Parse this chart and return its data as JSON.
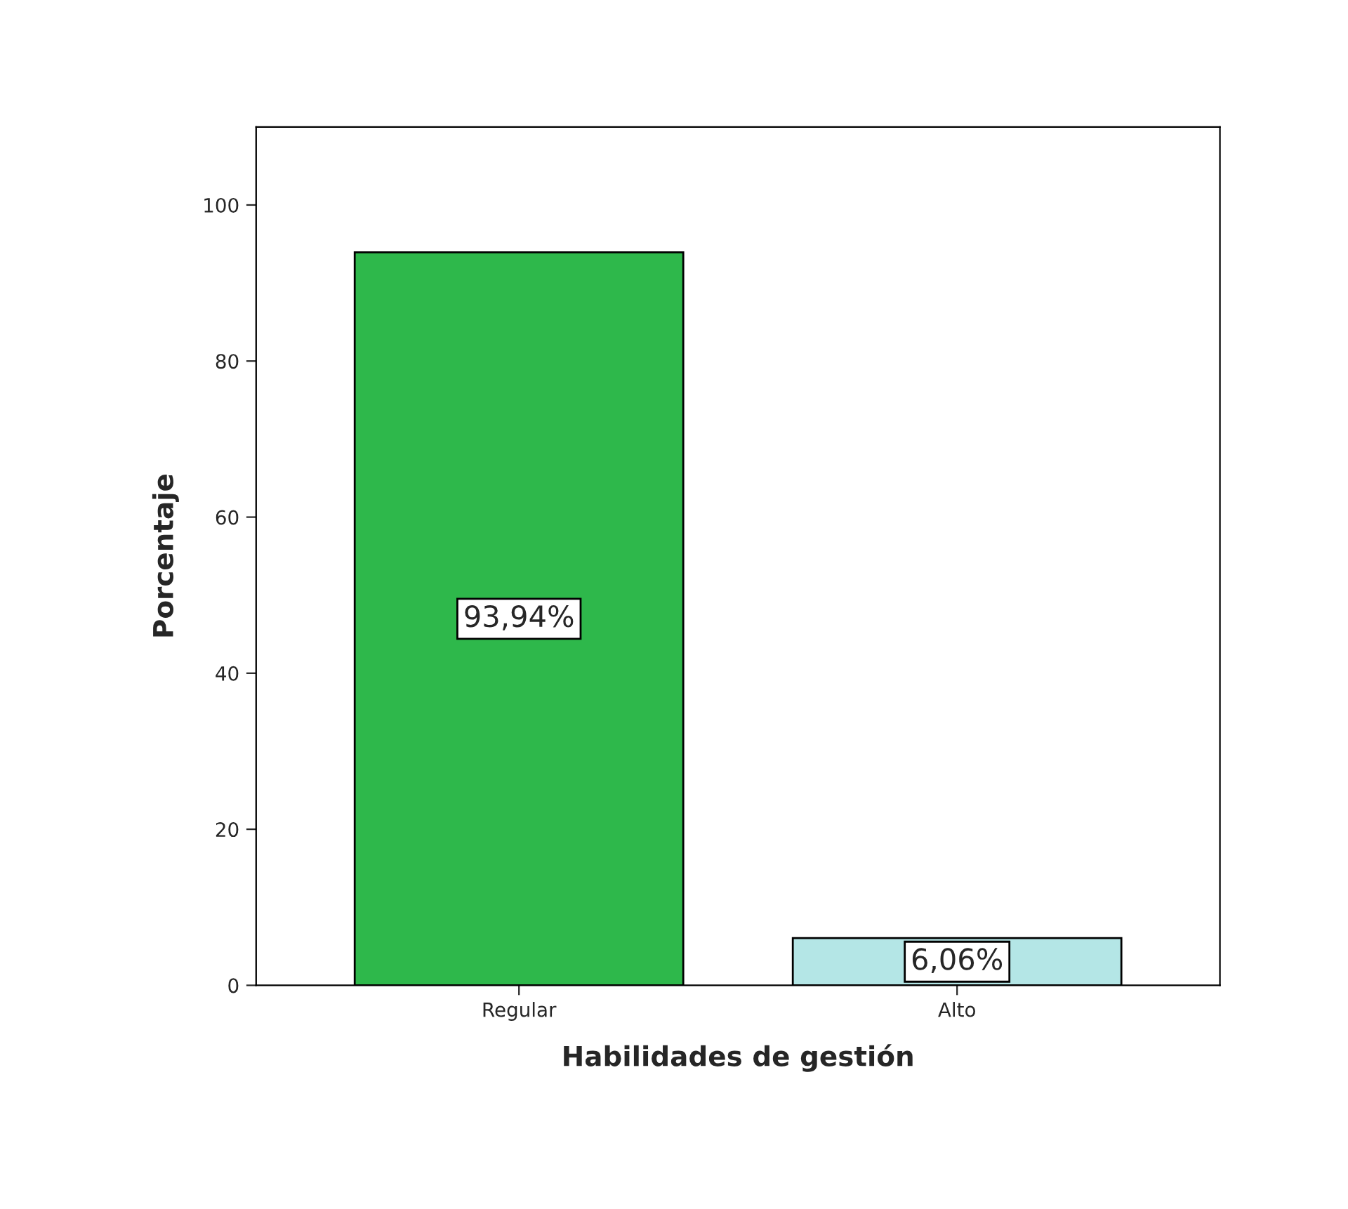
{
  "chart_data": {
    "type": "bar",
    "xlabel": "Habilidades de gestión",
    "ylabel": "Porcentaje",
    "categories": [
      "Regular",
      "Alto"
    ],
    "values": [
      93.94,
      6.06
    ],
    "colors": [
      "#2eb84b",
      "#b4e6e6"
    ],
    "value_labels": [
      "93,94%",
      "6,06%"
    ],
    "ylim": [
      0,
      110
    ],
    "yticks": [
      0,
      20,
      40,
      60,
      80,
      100
    ],
    "grid": false
  }
}
